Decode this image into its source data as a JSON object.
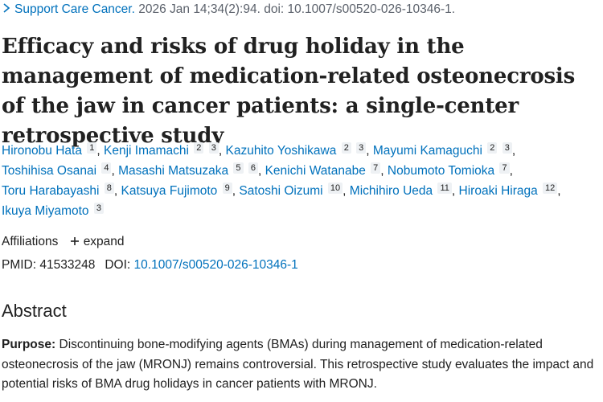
{
  "citation": {
    "journal": "Support Care Cancer.",
    "details": " 2026 Jan 14;34(2):94. doi: 10.1007/s00520-026-10346-1."
  },
  "title": "Efficacy and risks of drug holiday in the management of medication-related osteonecrosis of the jaw in cancer patients: a single-center retrospective study",
  "authors": [
    {
      "name": "Hironobu Hata",
      "sups": [
        "1"
      ]
    },
    {
      "name": "Kenji Imamachi",
      "sups": [
        "2",
        "3"
      ]
    },
    {
      "name": "Kazuhito Yoshikawa",
      "sups": [
        "2",
        "3"
      ]
    },
    {
      "name": "Mayumi Kamaguchi",
      "sups": [
        "2",
        "3"
      ]
    },
    {
      "name": "Toshihisa Osanai",
      "sups": [
        "4"
      ]
    },
    {
      "name": "Masashi Matsuzaka",
      "sups": [
        "5",
        "6"
      ]
    },
    {
      "name": "Kenichi Watanabe",
      "sups": [
        "7"
      ]
    },
    {
      "name": "Nobumoto Tomioka",
      "sups": [
        "7"
      ]
    },
    {
      "name": "Toru Harabayashi",
      "sups": [
        "8"
      ]
    },
    {
      "name": "Katsuya Fujimoto",
      "sups": [
        "9"
      ]
    },
    {
      "name": "Satoshi Oizumi",
      "sups": [
        "10"
      ]
    },
    {
      "name": "Michihiro Ueda",
      "sups": [
        "11"
      ]
    },
    {
      "name": "Hiroaki Hiraga",
      "sups": [
        "12"
      ]
    },
    {
      "name": "Ikuya Miyamoto",
      "sups": [
        "3"
      ]
    }
  ],
  "affiliations": {
    "label": "Affiliations",
    "expand_label": "expand"
  },
  "ids": {
    "pmid_label": "PMID:",
    "pmid": "41533248",
    "doi_label": "DOI:",
    "doi": "10.1007/s00520-026-10346-1"
  },
  "abstract": {
    "heading": "Abstract",
    "purpose_label": "Purpose:",
    "purpose_text": " Discontinuing bone-modifying agents (BMAs) during management of medication-related osteonecrosis of the jaw (MRONJ) remains controversial. This retrospective study evaluates the impact and potential risks of BMA drug holidays in cancer patients with MRONJ."
  },
  "colors": {
    "link": "#0071bc",
    "text": "#212121",
    "sup_bg": "#eef1f4"
  },
  "icons": [
    "chevron-right-icon",
    "plus-icon"
  ]
}
